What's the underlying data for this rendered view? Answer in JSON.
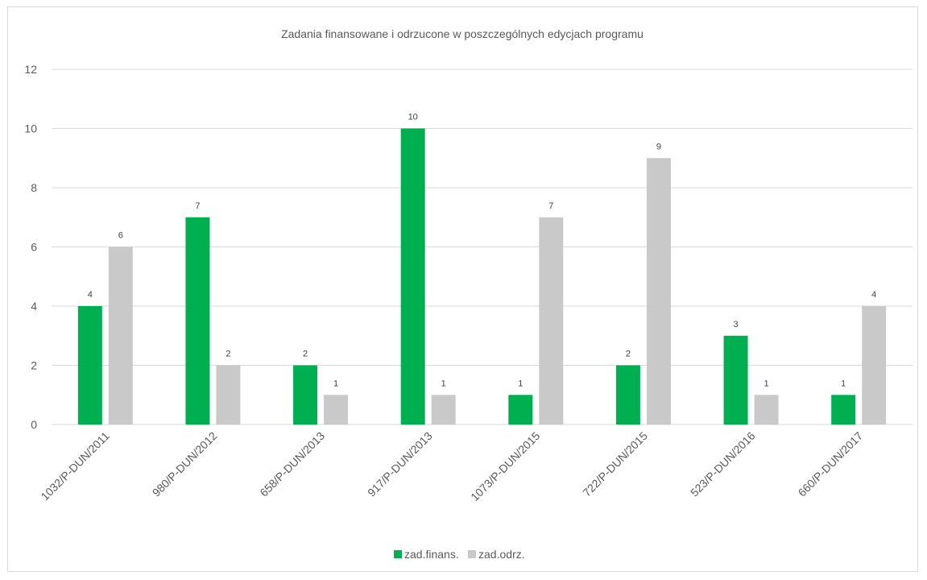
{
  "chart_data": {
    "type": "bar",
    "title": "Zadania finansowane i odrzucone w poszczególnych edycjach programu",
    "xlabel": "",
    "ylabel": "",
    "ylim": [
      0,
      12
    ],
    "yticks": [
      "0",
      "2",
      "4",
      "6",
      "8",
      "10",
      "12"
    ],
    "grid": true,
    "legend_position": "bottom",
    "categories": [
      "1032/P-DUN/2011",
      "980/P-DUN/2012",
      "658/P-DUN/2013",
      "917/P-DUN/2013",
      "1073/P-DUN/2015",
      "722/P-DUN/2015",
      "523/P-DUN/2016",
      "660/P-DUN/2017"
    ],
    "series": [
      {
        "name": "zad.finans.",
        "color": "#00b050",
        "values": [
          4,
          7,
          2,
          10,
          1,
          2,
          3,
          1
        ]
      },
      {
        "name": "zad.odrz.",
        "color": "#c9c9c9",
        "values": [
          6,
          2,
          1,
          1,
          7,
          9,
          1,
          4
        ]
      }
    ]
  }
}
